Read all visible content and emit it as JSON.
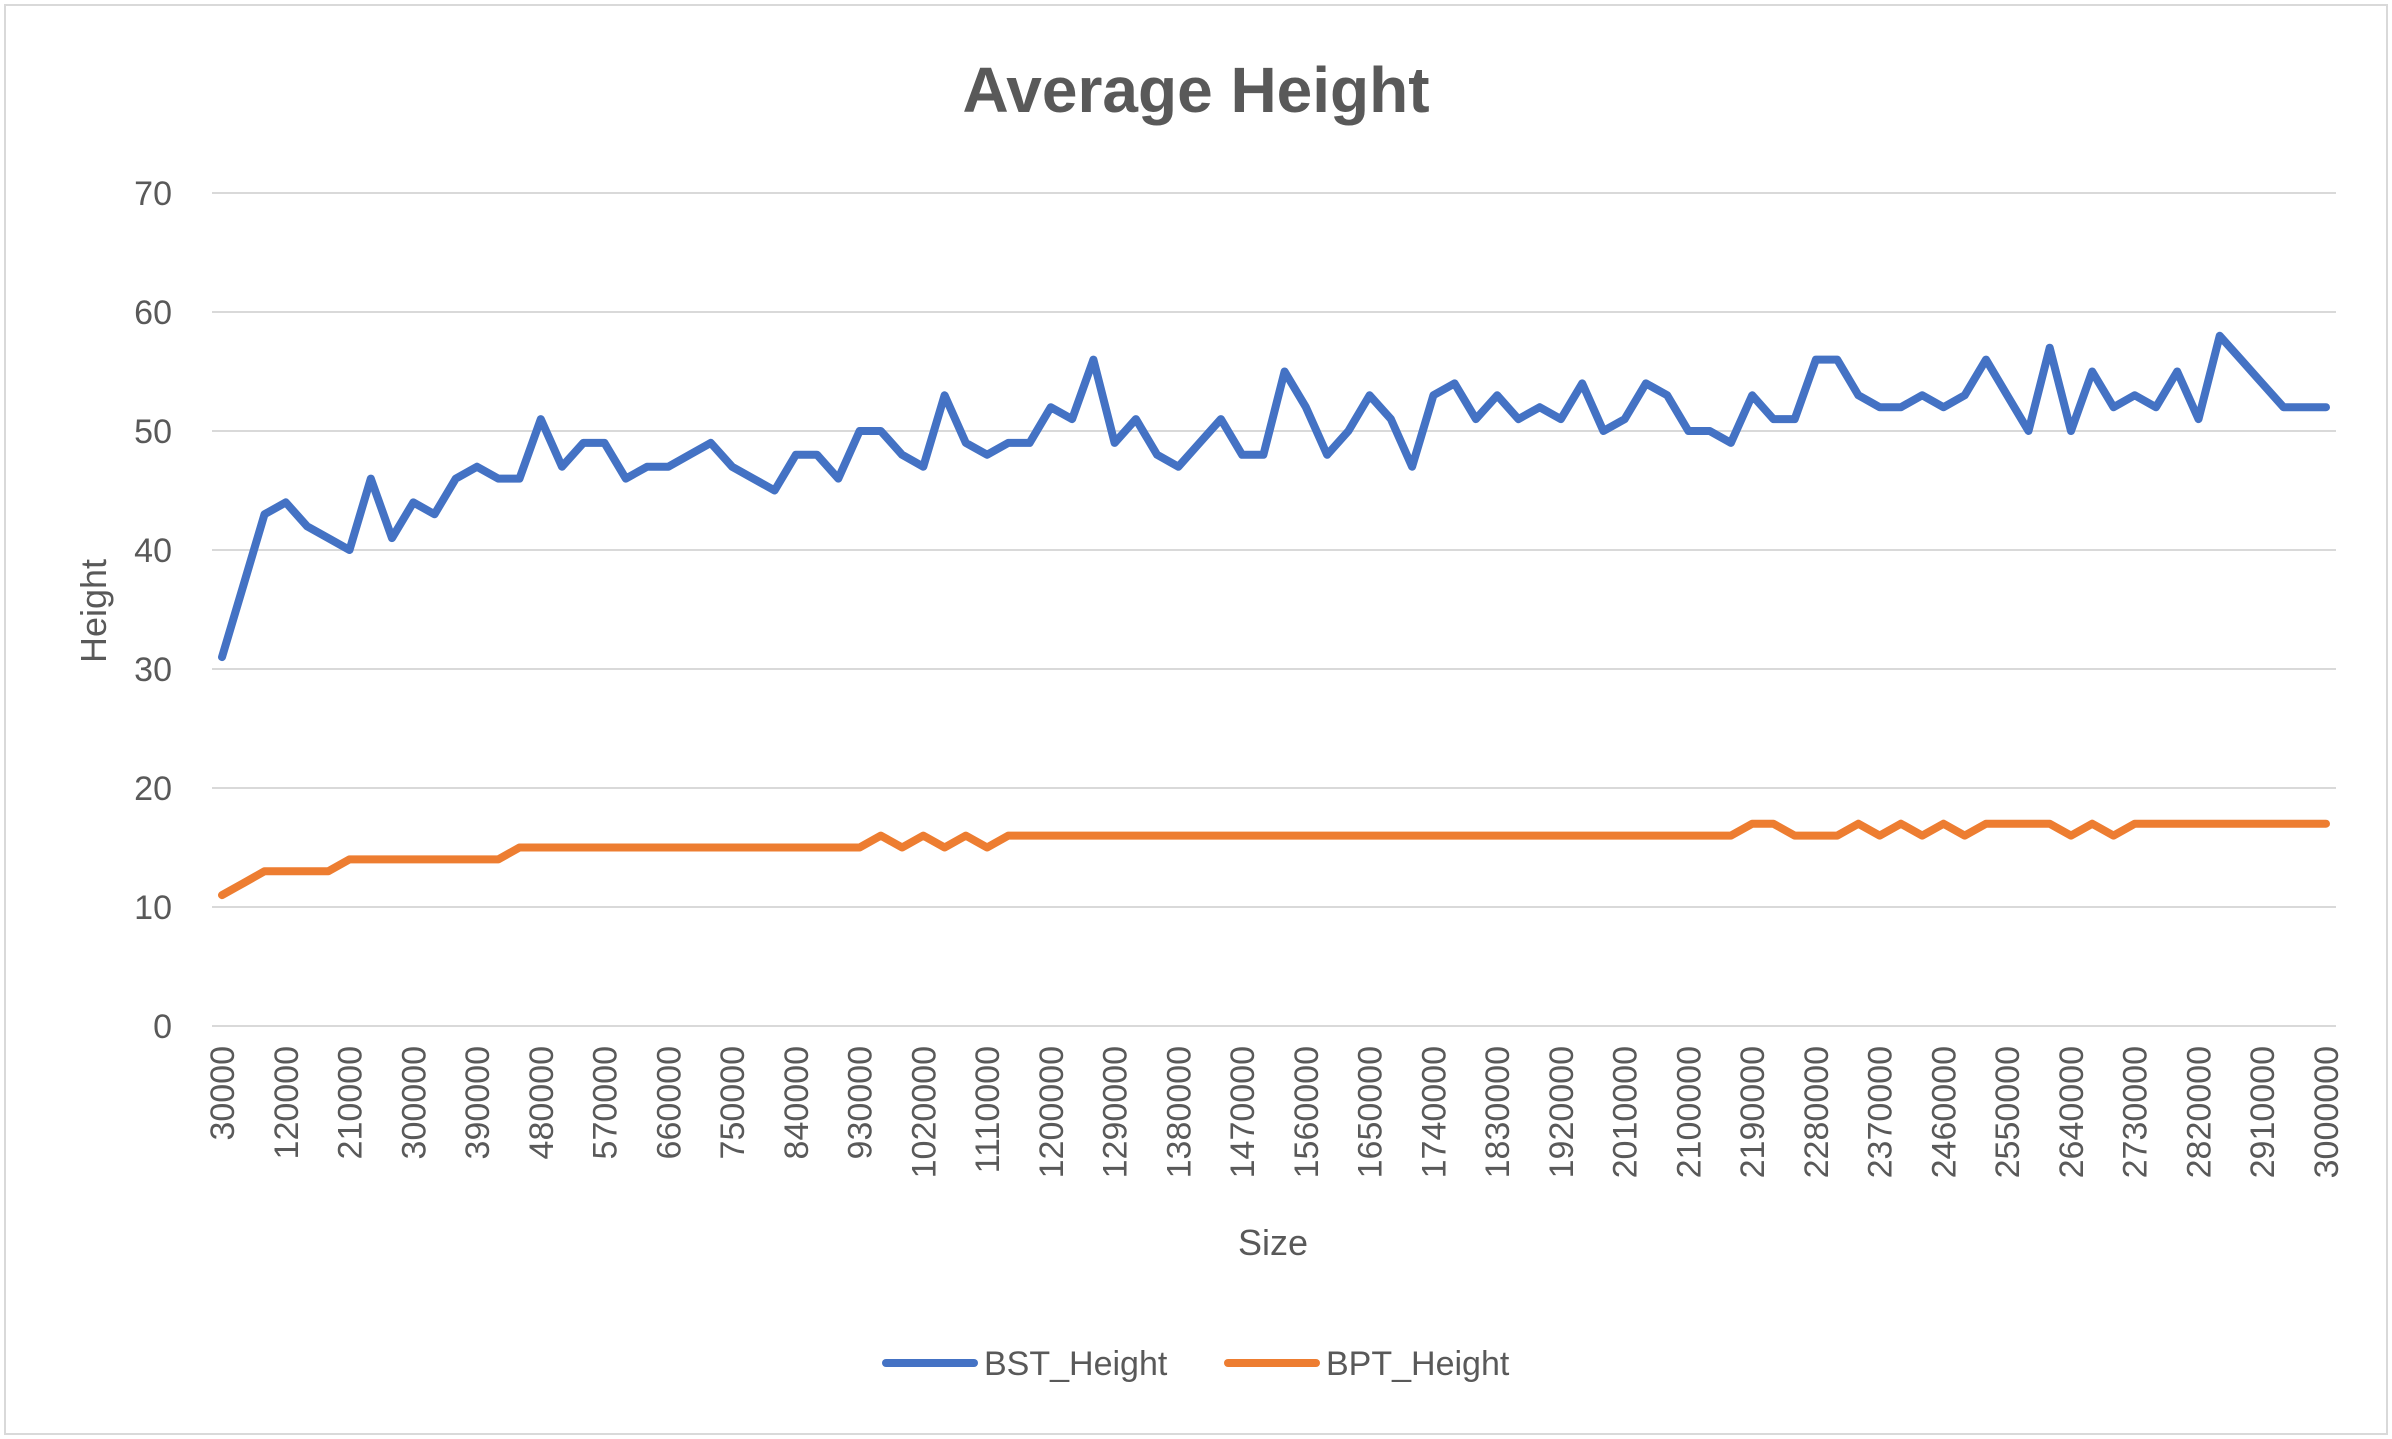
{
  "chart_data": {
    "type": "line",
    "title": "Average Height",
    "xlabel": "Size",
    "ylabel": "Height",
    "ylim": [
      0,
      70
    ],
    "ytick_step": 10,
    "grid": true,
    "legend_position": "bottom",
    "x": [
      30000,
      60000,
      90000,
      120000,
      150000,
      180000,
      210000,
      240000,
      270000,
      300000,
      330000,
      360000,
      390000,
      420000,
      450000,
      480000,
      510000,
      540000,
      570000,
      600000,
      630000,
      660000,
      690000,
      720000,
      750000,
      780000,
      810000,
      840000,
      870000,
      900000,
      930000,
      960000,
      990000,
      1020000,
      1050000,
      1080000,
      1110000,
      1140000,
      1170000,
      1200000,
      1230000,
      1260000,
      1290000,
      1320000,
      1350000,
      1380000,
      1410000,
      1440000,
      1470000,
      1500000,
      1530000,
      1560000,
      1590000,
      1620000,
      1650000,
      1680000,
      1710000,
      1740000,
      1770000,
      1800000,
      1830000,
      1860000,
      1890000,
      1920000,
      1950000,
      1980000,
      2010000,
      2040000,
      2070000,
      2100000,
      2130000,
      2160000,
      2190000,
      2220000,
      2250000,
      2280000,
      2310000,
      2340000,
      2370000,
      2400000,
      2430000,
      2460000,
      2490000,
      2520000,
      2550000,
      2580000,
      2610000,
      2640000,
      2670000,
      2700000,
      2730000,
      2760000,
      2790000,
      2820000,
      2850000,
      2880000,
      2910000,
      2940000,
      2970000,
      3000000
    ],
    "xtick_labels": [
      "30000",
      "120000",
      "210000",
      "300000",
      "390000",
      "480000",
      "570000",
      "660000",
      "750000",
      "840000",
      "930000",
      "1020000",
      "1110000",
      "1200000",
      "1290000",
      "1380000",
      "1470000",
      "1560000",
      "1650000",
      "1740000",
      "1830000",
      "1920000",
      "2010000",
      "2100000",
      "2190000",
      "2280000",
      "2370000",
      "2460000",
      "2550000",
      "2640000",
      "2730000",
      "2820000",
      "2910000",
      "3000000"
    ],
    "series": [
      {
        "name": "BST_Height",
        "color": "#4472c4",
        "values": [
          31,
          37,
          43,
          44,
          42,
          41,
          40,
          46,
          41,
          44,
          43,
          46,
          47,
          46,
          46,
          51,
          47,
          49,
          49,
          46,
          47,
          47,
          48,
          49,
          47,
          46,
          45,
          48,
          48,
          46,
          50,
          50,
          48,
          47,
          53,
          49,
          48,
          49,
          49,
          52,
          51,
          56,
          49,
          51,
          48,
          47,
          49,
          51,
          48,
          48,
          55,
          52,
          48,
          50,
          53,
          51,
          47,
          53,
          54,
          51,
          53,
          51,
          52,
          51,
          54,
          50,
          51,
          54,
          53,
          50,
          50,
          49,
          53,
          51,
          51,
          56,
          56,
          53,
          52,
          52,
          53,
          52,
          53,
          56,
          53,
          50,
          57,
          50,
          55,
          52,
          53,
          52,
          55,
          51,
          58,
          56,
          54,
          52,
          52,
          52
        ]
      },
      {
        "name": "BPT_Height",
        "color": "#ed7d31",
        "values": [
          11,
          12,
          13,
          13,
          13,
          13,
          14,
          14,
          14,
          14,
          14,
          14,
          14,
          14,
          15,
          15,
          15,
          15,
          15,
          15,
          15,
          15,
          15,
          15,
          15,
          15,
          15,
          15,
          15,
          15,
          15,
          16,
          15,
          16,
          15,
          16,
          15,
          16,
          16,
          16,
          16,
          16,
          16,
          16,
          16,
          16,
          16,
          16,
          16,
          16,
          16,
          16,
          16,
          16,
          16,
          16,
          16,
          16,
          16,
          16,
          16,
          16,
          16,
          16,
          16,
          16,
          16,
          16,
          16,
          16,
          16,
          16,
          17,
          17,
          16,
          16,
          16,
          17,
          16,
          17,
          16,
          17,
          16,
          17,
          17,
          17,
          17,
          16,
          17,
          16,
          17,
          17,
          17,
          17,
          17,
          17,
          17,
          17,
          17,
          17
        ]
      }
    ]
  }
}
